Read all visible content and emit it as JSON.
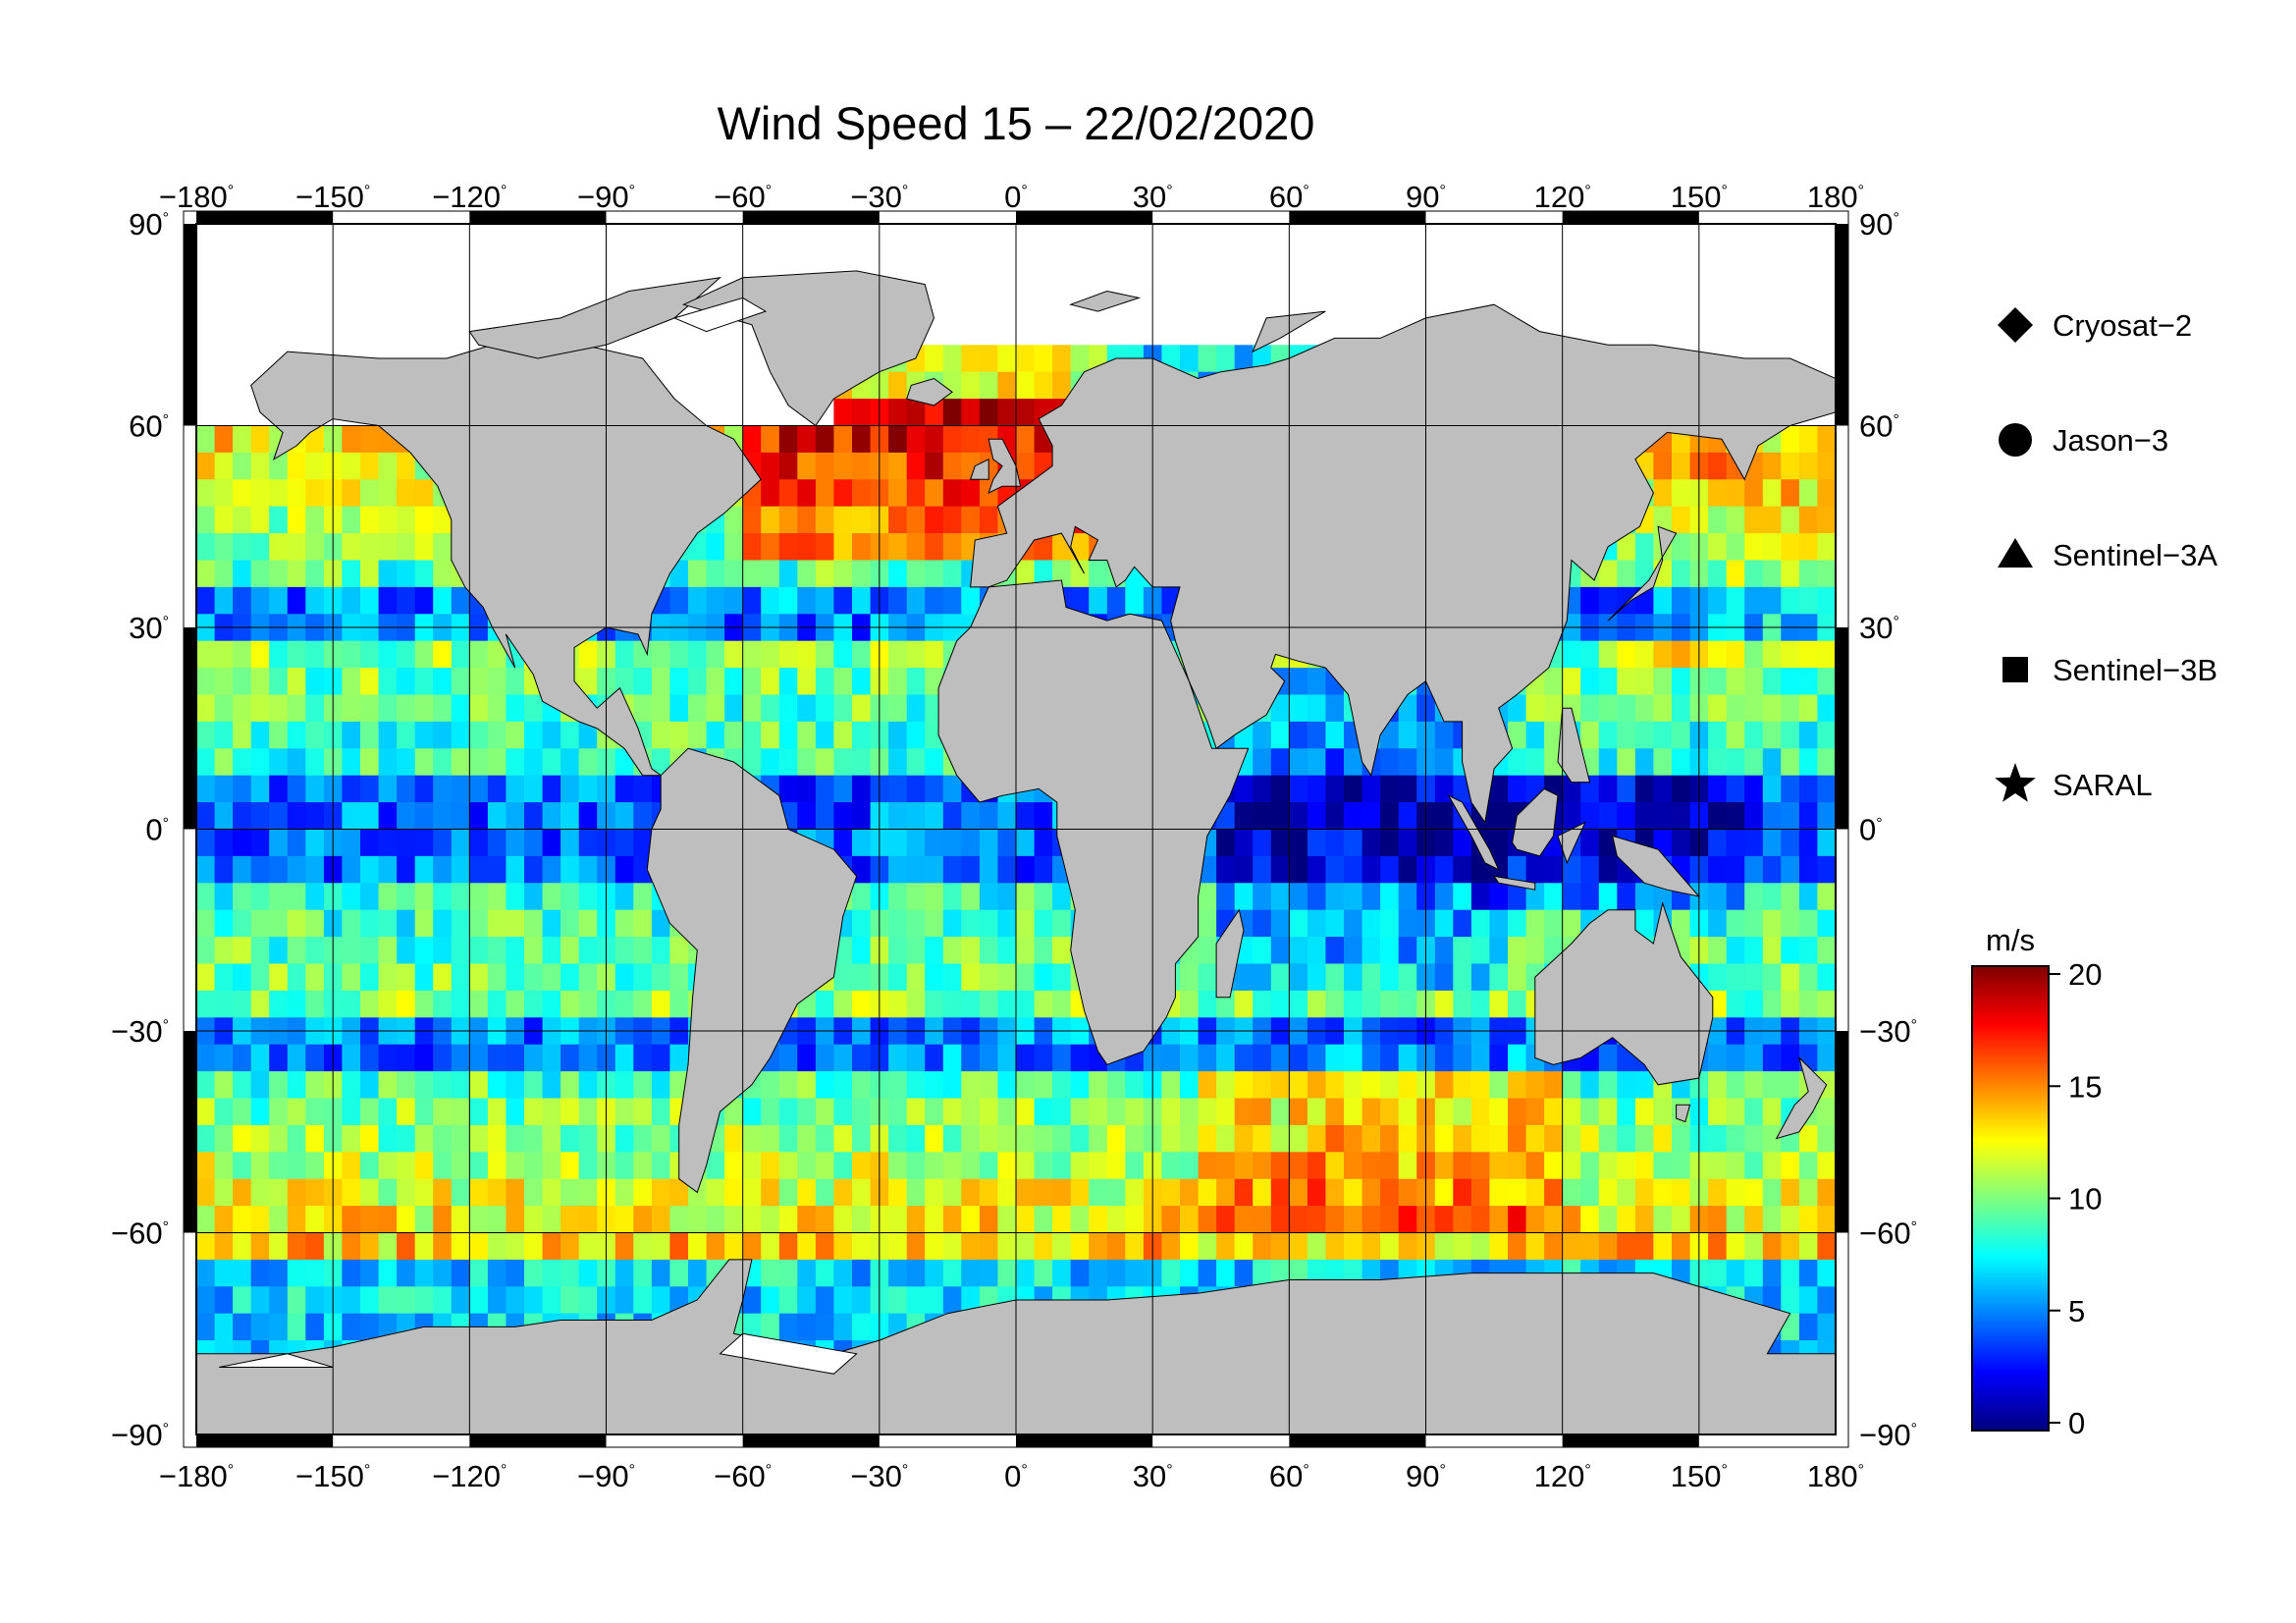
{
  "title": "Wind Speed 15 – 22/02/2020",
  "map": {
    "lon_ticks": [
      "−180",
      "−150",
      "−120",
      "−90",
      "−60",
      "−30",
      "0",
      "30",
      "60",
      "90",
      "120",
      "150",
      "180"
    ],
    "lat_ticks": [
      "90",
      "60",
      "30",
      "0",
      "−30",
      "−60",
      "−90"
    ],
    "lat_ticks_right": [
      "90",
      "60",
      "30",
      "0",
      "−30",
      "−60",
      "−90"
    ],
    "degree_symbol": "°",
    "land_color": "#bebebe",
    "ice_color": "#ffffff",
    "grid": true
  },
  "legend": {
    "items": [
      {
        "label": "Cryosat−2",
        "marker": "diamond"
      },
      {
        "label": "Jason−3",
        "marker": "circle"
      },
      {
        "label": "Sentinel−3A",
        "marker": "triangle"
      },
      {
        "label": "Sentinel−3B",
        "marker": "square"
      },
      {
        "label": "SARAL",
        "marker": "star"
      }
    ]
  },
  "colorbar": {
    "unit": "m/s",
    "min": 0,
    "max": 20,
    "ticks": [
      "0",
      "5",
      "10",
      "15",
      "20"
    ],
    "colors": [
      "#00007f",
      "#0000ff",
      "#007fff",
      "#00ffff",
      "#7fff7f",
      "#ffff00",
      "#ff7f00",
      "#ff0000",
      "#7f0000"
    ]
  },
  "chart_data": {
    "type": "heatmap",
    "title": "Wind Speed 15 – 22/02/2020",
    "variable": "wind speed",
    "unit": "m/s",
    "x_range": [
      -180,
      180
    ],
    "y_range": [
      -90,
      90
    ],
    "color_range": [
      0,
      20
    ],
    "series": [
      "Cryosat−2",
      "Jason−3",
      "Sentinel−3A",
      "Sentinel−3B",
      "SARAL"
    ]
  }
}
